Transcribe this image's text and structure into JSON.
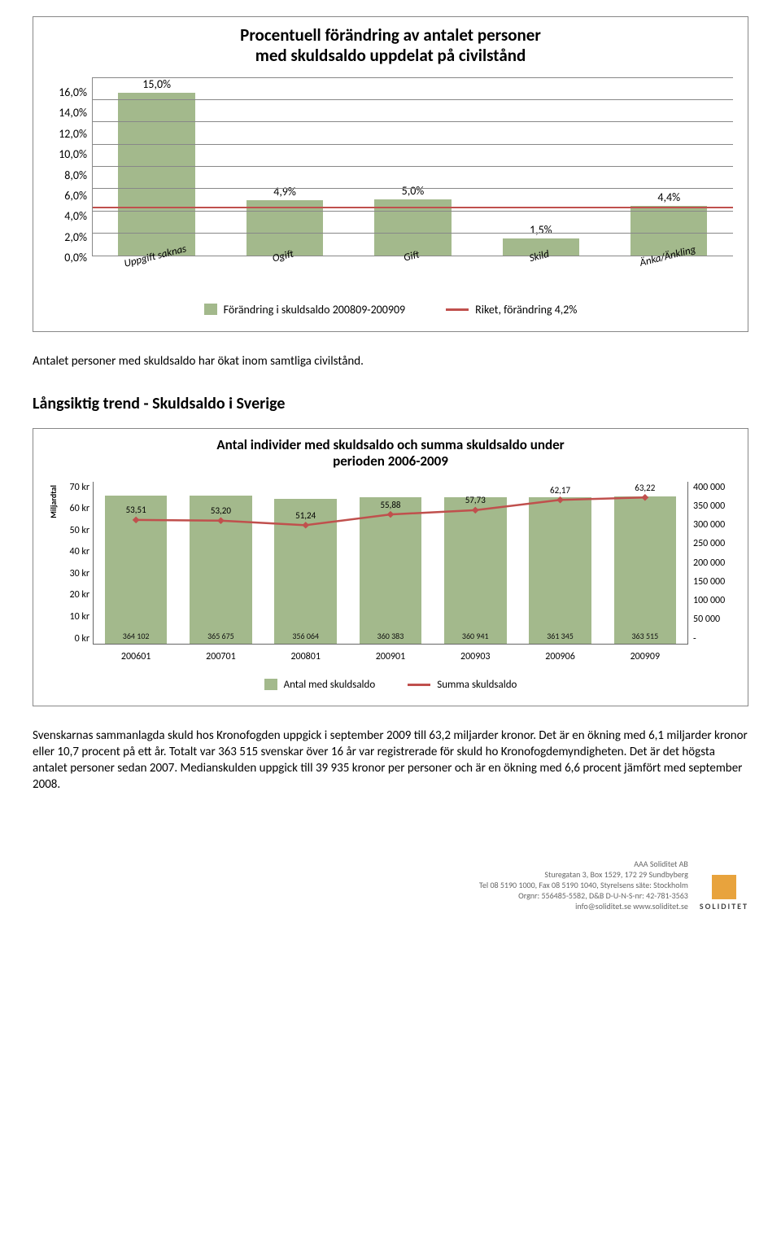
{
  "colors": {
    "bar_green": "#a3b98c",
    "red_line": "#c0504d",
    "border": "#888888",
    "grid": "#888888",
    "footer_square": "#e8a33d",
    "footer_text": "#666666"
  },
  "chart1": {
    "type": "bar",
    "title_line1": "Procentuell förändring av antalet personer",
    "title_line2": "med skuldsaldo uppdelat på civilstånd",
    "ymax": 16,
    "ymin": 0,
    "ystep": 2,
    "yticks": [
      "16,0%",
      "14,0%",
      "12,0%",
      "10,0%",
      "8,0%",
      "6,0%",
      "4,0%",
      "2,0%",
      "0,0%"
    ],
    "categories": [
      "Uppgift saknas",
      "Ogift",
      "Gift",
      "Skild",
      "Änka/Änkling"
    ],
    "values": [
      15.0,
      4.9,
      5.0,
      1.5,
      4.4
    ],
    "value_labels": [
      "15,0%",
      "4,9%",
      "5,0%",
      "1,5%",
      "4,4%"
    ],
    "trendline_value": 4.2,
    "legend_bar": "Förändring i skuldsaldo 200809-200909",
    "legend_line": "Riket, förändring 4,2%"
  },
  "para1": "Antalet personer med skuldsaldo har ökat inom samtliga civilstånd.",
  "section_title": "Långsiktig trend -  Skuldsaldo i Sverige",
  "chart2": {
    "type": "combo",
    "title_line1": "Antal individer med skuldsaldo och summa skuldsaldo under",
    "title_line2": "perioden 2006-2009",
    "yleft_label": "Miljardtal",
    "yleft_max": 70,
    "yleft_min": 0,
    "yleft_step": 10,
    "yleft_ticks": [
      "70 kr",
      "60 kr",
      "50 kr",
      "40 kr",
      "30 kr",
      "20 kr",
      "10 kr",
      "0 kr"
    ],
    "yright_max": 400000,
    "yright_min": 0,
    "yright_step": 50000,
    "yright_ticks": [
      "400 000",
      "350 000",
      "300 000",
      "250 000",
      "200 000",
      "150 000",
      "100 000",
      "50 000",
      "-"
    ],
    "categories": [
      "200601",
      "200701",
      "200801",
      "200901",
      "200903",
      "200906",
      "200909"
    ],
    "bar_values": [
      364102,
      365675,
      356064,
      360383,
      360941,
      361345,
      363515
    ],
    "bar_bottom_labels": [
      "364 102",
      "365 675",
      "356 064",
      "360 383",
      "360 941",
      "361 345",
      "363 515"
    ],
    "line_values": [
      53.51,
      53.2,
      51.24,
      55.88,
      57.73,
      62.17,
      63.22
    ],
    "line_labels": [
      "53,51",
      "53,20",
      "51,24",
      "55,88",
      "57,73",
      "62,17",
      "63,22"
    ],
    "legend_bar": "Antal med skuldsaldo",
    "legend_line": "Summa skuldsaldo"
  },
  "para2": "Svenskarnas sammanlagda skuld hos Kronofogden uppgick i september 2009 till 63,2 miljarder kronor. Det är en ökning med 6,1 miljarder kronor eller 10,7 procent på ett år. Totalt var 363 515 svenskar över 16 år var registrerade för skuld ho Kronofogdemyndigheten. Det är det högsta antalet personer sedan 2007. Medianskulden uppgick till 39 935 kronor per personer och  är en ökning med 6,6 procent jämfört med september 2008.",
  "footer": {
    "company": "AAA Soliditet AB",
    "addr": "Sturegatan 3, Box 1529, 172 29 Sundbyberg",
    "tel": "Tel 08 5190 1000, Fax 08 5190 1040, Styrelsens säte: Stockholm",
    "org": "Orgnr: 556485-5582, D&B D-U-N-S-nr: 42-781-3563",
    "web": "info@soliditet.se  www.soliditet.se",
    "logo_text": "SOLIDITET"
  }
}
